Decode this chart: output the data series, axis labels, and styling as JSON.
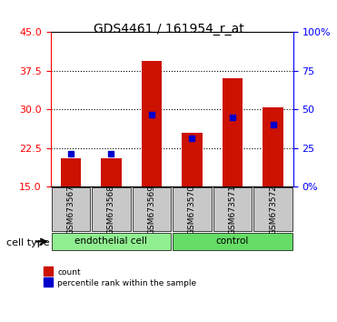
{
  "title": "GDS4461 / 161954_r_at",
  "samples": [
    "GSM673567",
    "GSM673568",
    "GSM673569",
    "GSM673570",
    "GSM673571",
    "GSM673572"
  ],
  "red_values": [
    20.5,
    20.5,
    39.5,
    25.5,
    36.0,
    30.5
  ],
  "blue_values": [
    21.5,
    21.5,
    29.0,
    24.5,
    28.5,
    27.0
  ],
  "red_base": 15.0,
  "ylim_left": [
    15,
    45
  ],
  "yticks_left": [
    15,
    22.5,
    30,
    37.5,
    45
  ],
  "yticks_right_labels": [
    "0%",
    "25",
    "50",
    "75",
    "100%"
  ],
  "yticks_right_vals": [
    15,
    22.5,
    30,
    37.5,
    45
  ],
  "cell_types": [
    "endothelial cell",
    "endothelial cell",
    "endothelial cell",
    "control",
    "control",
    "control"
  ],
  "group_colors": {
    "endothelial cell": "#90EE90",
    "control": "#00DD00"
  },
  "bar_color": "#CC1100",
  "blue_color": "#0000CC",
  "bg_color_samples": "#C8C8C8",
  "legend_count_color": "#CC1100",
  "legend_pct_color": "#0000CC",
  "bar_width": 0.5,
  "blue_marker_size": 5
}
